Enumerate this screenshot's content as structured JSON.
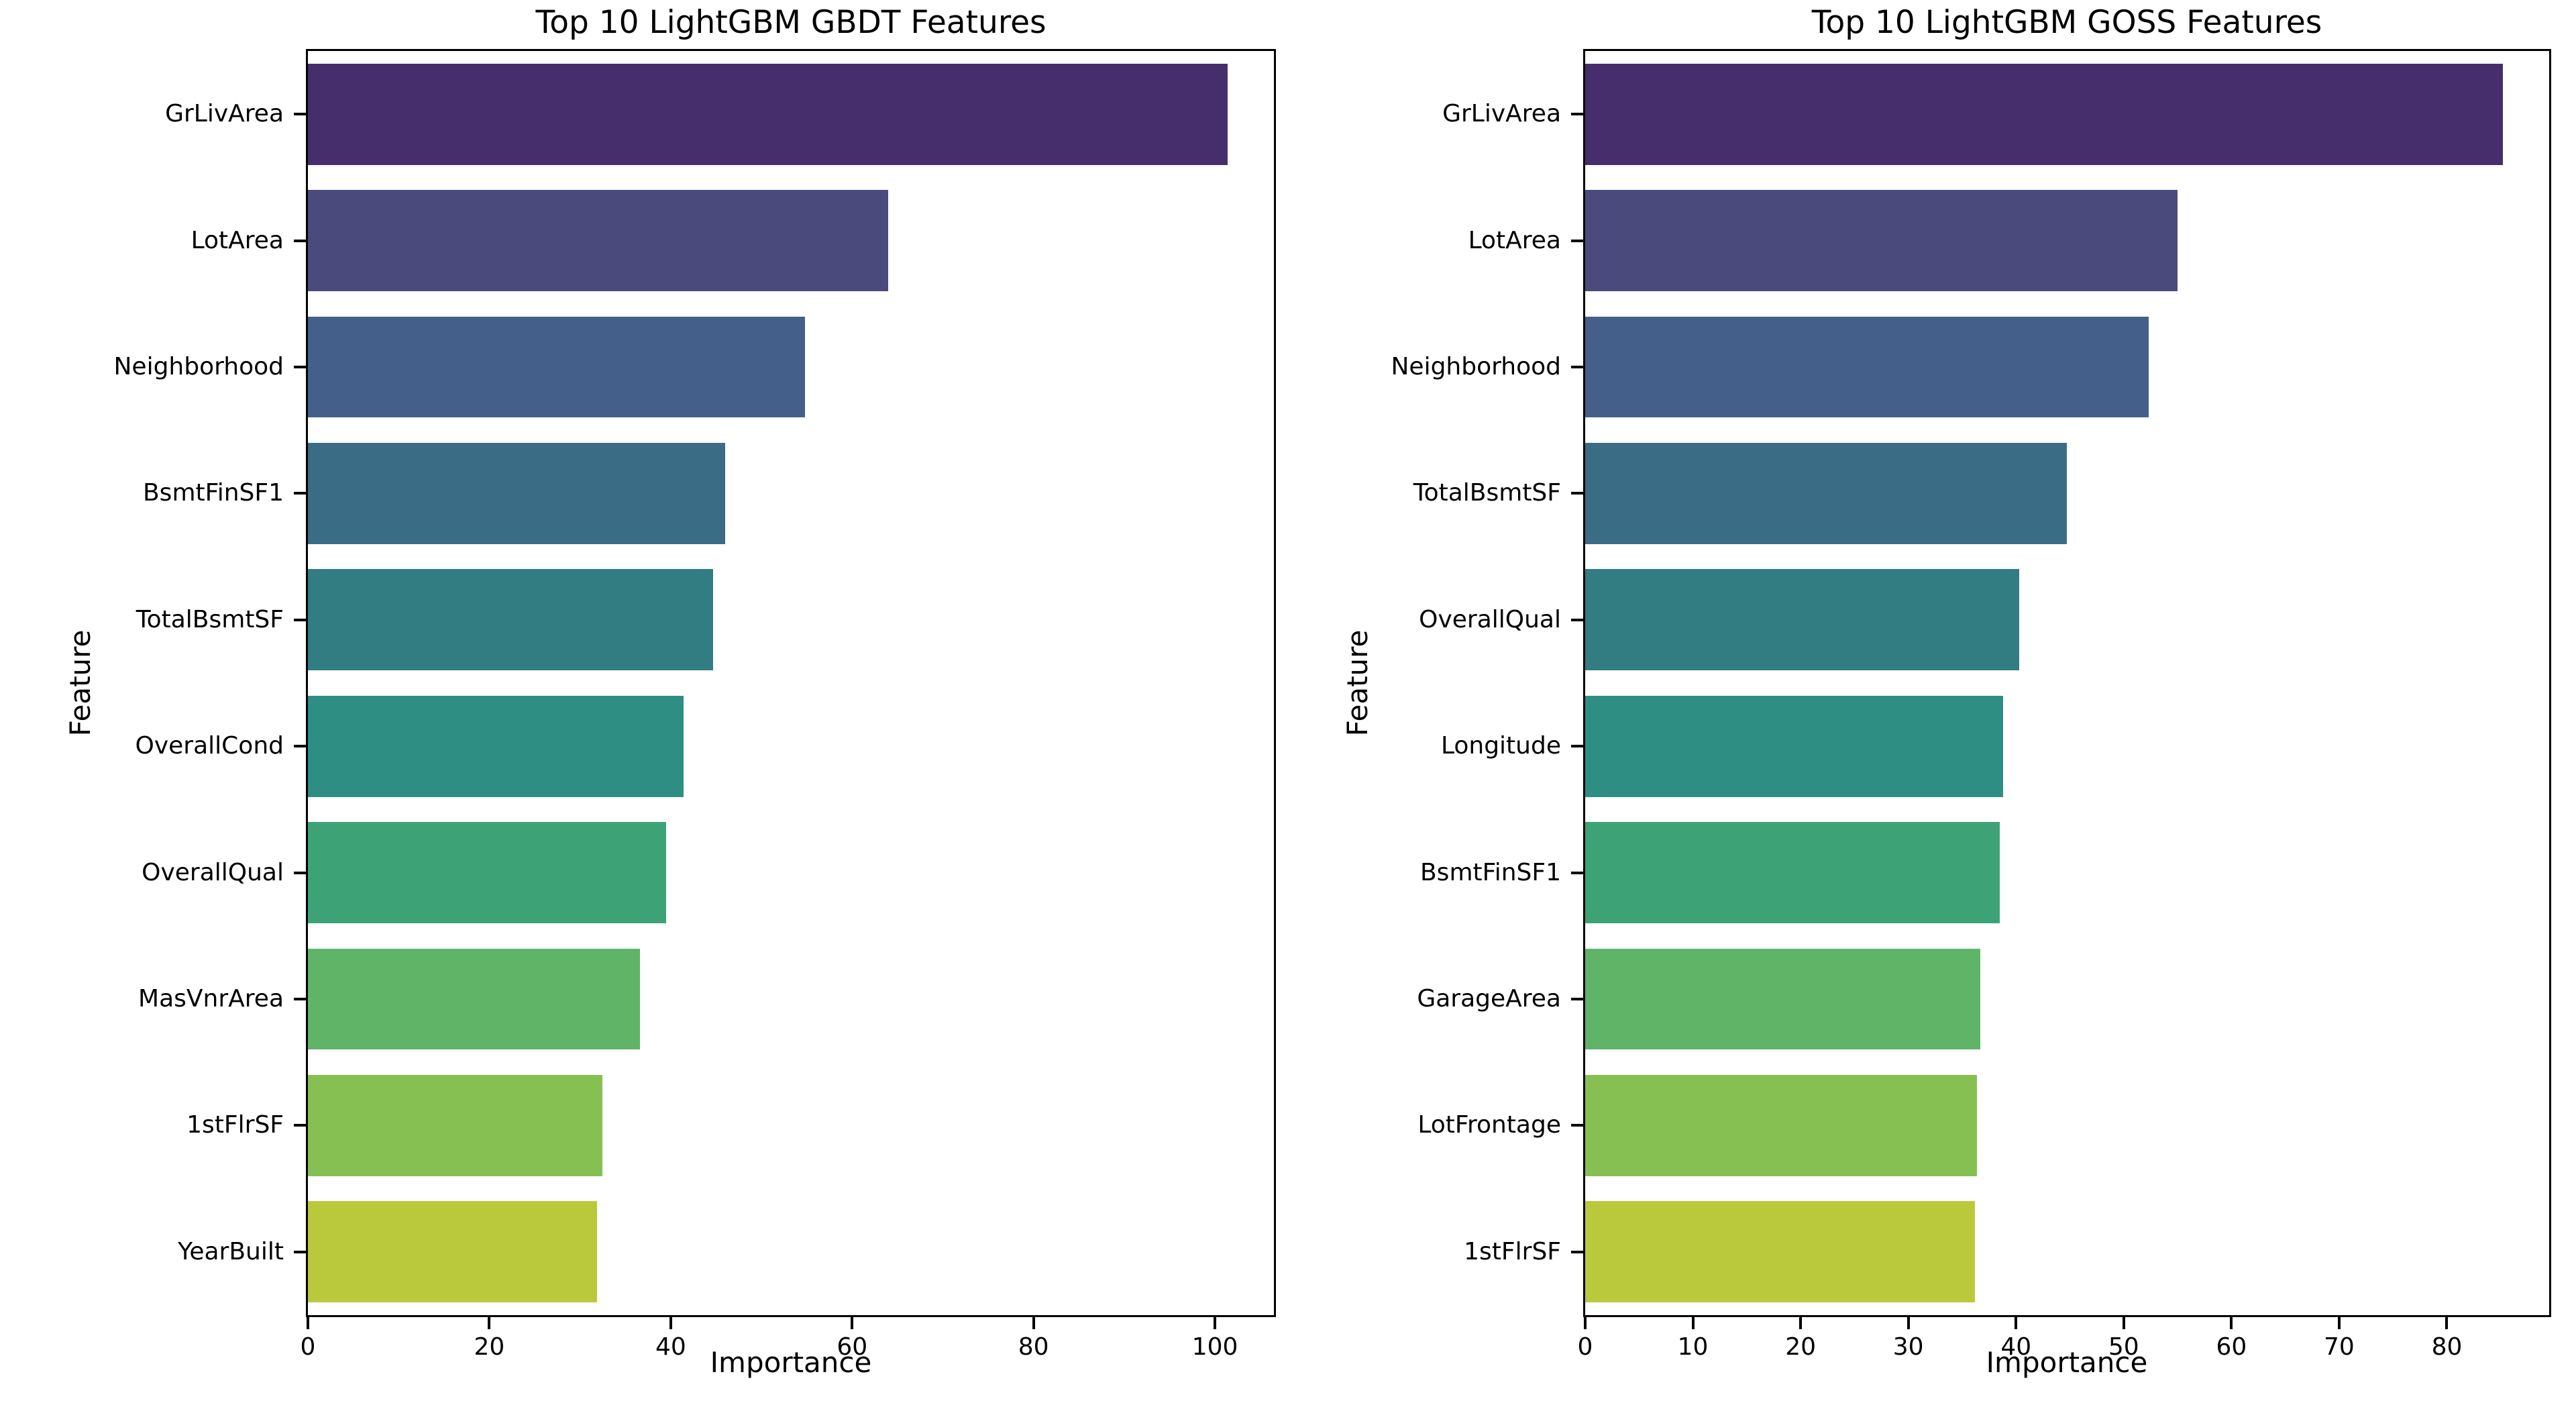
{
  "figure": {
    "background": "#ffffff",
    "text_color": "#000000",
    "spine_color": "#000000",
    "bar_palette": [
      "#462d6c",
      "#4a4a7c",
      "#44608a",
      "#3a6d85",
      "#317d82",
      "#2f8e83",
      "#3da377",
      "#5fb468",
      "#87c052",
      "#bac93c"
    ]
  },
  "chart_data": [
    {
      "type": "bar",
      "orientation": "horizontal",
      "title": "Top 10 LightGBM GBDT Features",
      "xlabel": "Importance",
      "ylabel": "Feature",
      "categories": [
        "GrLivArea",
        "LotArea",
        "Neighborhood",
        "BsmtFinSF1",
        "TotalBsmtSF",
        "OverallCond",
        "OverallQual",
        "MasVnrArea",
        "1stFlrSF",
        "YearBuilt"
      ],
      "values": [
        101.4,
        64.0,
        54.8,
        46.0,
        44.7,
        41.4,
        39.5,
        36.6,
        32.5,
        31.9
      ],
      "xlim": [
        0,
        106.5
      ],
      "xticks": [
        0,
        20,
        40,
        60,
        80,
        100
      ],
      "grid": false,
      "legend": "none"
    },
    {
      "type": "bar",
      "orientation": "horizontal",
      "title": "Top 10 LightGBM GOSS Features",
      "xlabel": "Importance",
      "ylabel": "Feature",
      "categories": [
        "GrLivArea",
        "LotArea",
        "Neighborhood",
        "TotalBsmtSF",
        "OverallQual",
        "Longitude",
        "BsmtFinSF1",
        "GarageArea",
        "LotFrontage",
        "1stFlrSF"
      ],
      "values": [
        85.2,
        55.0,
        52.3,
        44.7,
        40.3,
        38.8,
        38.5,
        36.7,
        36.4,
        36.2
      ],
      "xlim": [
        0,
        89.5
      ],
      "xticks": [
        0,
        10,
        20,
        30,
        40,
        50,
        60,
        70,
        80
      ],
      "grid": false,
      "legend": "none"
    }
  ]
}
